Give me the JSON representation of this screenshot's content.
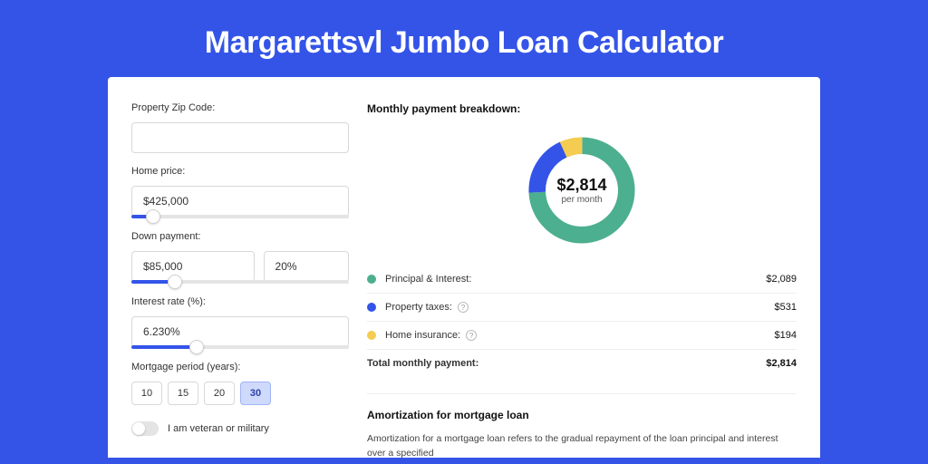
{
  "page": {
    "title": "Margarettsvl Jumbo Loan Calculator",
    "bg_color": "#3454e8",
    "card_bg": "#ffffff"
  },
  "form": {
    "zip": {
      "label": "Property Zip Code:",
      "value": ""
    },
    "home_price": {
      "label": "Home price:",
      "value": "$425,000",
      "slider_pct": 10
    },
    "down_payment": {
      "label": "Down payment:",
      "amount": "$85,000",
      "percent": "20%",
      "slider_pct": 20
    },
    "interest": {
      "label": "Interest rate (%):",
      "value": "6.230%",
      "slider_pct": 30
    },
    "period": {
      "label": "Mortgage period (years):",
      "options": [
        "10",
        "15",
        "20",
        "30"
      ],
      "selected": "30"
    },
    "veteran": {
      "label": "I am veteran or military",
      "on": false
    }
  },
  "breakdown": {
    "title": "Monthly payment breakdown:",
    "donut": {
      "center_value": "$2,814",
      "center_sub": "per month",
      "segments": [
        {
          "key": "principal",
          "color": "#4caf8f",
          "pct": 74.2
        },
        {
          "key": "taxes",
          "color": "#3454e8",
          "pct": 18.9
        },
        {
          "key": "insurance",
          "color": "#f4cc52",
          "pct": 6.9
        }
      ]
    },
    "legend": {
      "principal": {
        "label": "Principal & Interest:",
        "value": "$2,089",
        "color": "#4caf8f",
        "help": false
      },
      "taxes": {
        "label": "Property taxes:",
        "value": "$531",
        "color": "#3454e8",
        "help": true
      },
      "insurance": {
        "label": "Home insurance:",
        "value": "$194",
        "color": "#f4cc52",
        "help": true
      },
      "total": {
        "label": "Total monthly payment:",
        "value": "$2,814"
      }
    }
  },
  "amort": {
    "title": "Amortization for mortgage loan",
    "body": "Amortization for a mortgage loan refers to the gradual repayment of the loan principal and interest over a specified"
  },
  "styles": {
    "slider_fill": "#3454e8",
    "slider_track": "#e4e4e4",
    "period_active_bg": "#cfd9fb"
  }
}
